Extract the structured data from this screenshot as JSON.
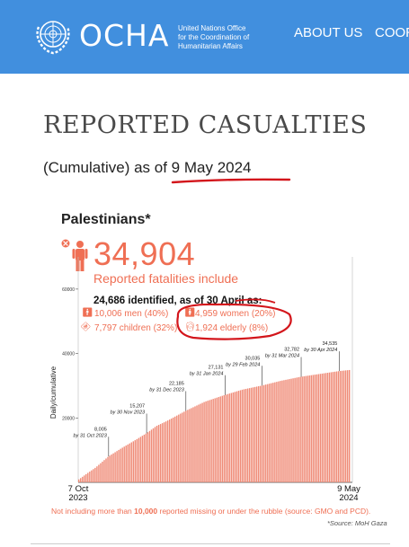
{
  "header": {
    "brand": "OCHA",
    "org_line1": "United Nations Office",
    "org_line2": "for the Coordination of",
    "org_line3": "Humanitarian Affairs",
    "nav_about": "ABOUT US",
    "nav_coord": "COOR",
    "bg_color": "#418fde"
  },
  "page": {
    "title": "REPORTED CASUALTIES",
    "subtitle_prefix": "(Cumulative) as of ",
    "subtitle_date": "9 May 2024"
  },
  "panel": {
    "heading": "Palestinians*",
    "total": "34,904",
    "total_label": "Reported fatalities include",
    "identified": "24,686 identified, as of 30 April as:",
    "men": "10,006 men (40%)",
    "women": "4,959 women (20%)",
    "children": "7,797 children (32%)",
    "elderly": "1,924 elderly (8%)",
    "footnote_pre": "Not including more than ",
    "footnote_bold": "10,000",
    "footnote_post": " reported missing or under the rubble (source: GMO and PCD).",
    "source": "*Source: MoH Gaza",
    "accent_color": "#ef6f54"
  },
  "chart_data": {
    "type": "area",
    "title": "",
    "ylabel": "Daily/cumulative",
    "x_start_label": "7 Oct 2023",
    "x_end_label": "9 May 2024",
    "ylim": [
      0,
      70000
    ],
    "yticks": [
      20000,
      40000,
      60000
    ],
    "ytick_labels": [
      "20000",
      "40000",
      "60000"
    ],
    "grid": false,
    "annotations": [
      {
        "value_label": "8,005",
        "date_label": "by 31 Oct 2023",
        "day": 24,
        "value": 8005
      },
      {
        "value_label": "15,207",
        "date_label": "by 30 Nov 2023",
        "day": 54,
        "value": 15207
      },
      {
        "value_label": "22,185",
        "date_label": "by 31 Dec 2023",
        "day": 85,
        "value": 22185
      },
      {
        "value_label": "27,131",
        "date_label": "by 31 Jan 2024",
        "day": 116,
        "value": 27131
      },
      {
        "value_label": "30,035",
        "date_label": "by 29 Feb 2024",
        "day": 145,
        "value": 30035
      },
      {
        "value_label": "32,782",
        "date_label": "by 31 Mar 2024",
        "day": 176,
        "value": 32782
      },
      {
        "value_label": "34,535",
        "date_label": "by 30 Apr 2024",
        "day": 206,
        "value": 34535
      }
    ],
    "series": [
      {
        "x_days": [
          0,
          7,
          14,
          24,
          34,
          44,
          54,
          62,
          70,
          85,
          100,
          116,
          130,
          145,
          160,
          176,
          190,
          206,
          215
        ],
        "values": [
          700,
          2700,
          4600,
          8005,
          10500,
          12800,
          15207,
          17500,
          19000,
          22185,
          25000,
          27131,
          28800,
          30035,
          31500,
          32782,
          33600,
          34535,
          34904
        ]
      }
    ],
    "color": "#ef8a76"
  }
}
